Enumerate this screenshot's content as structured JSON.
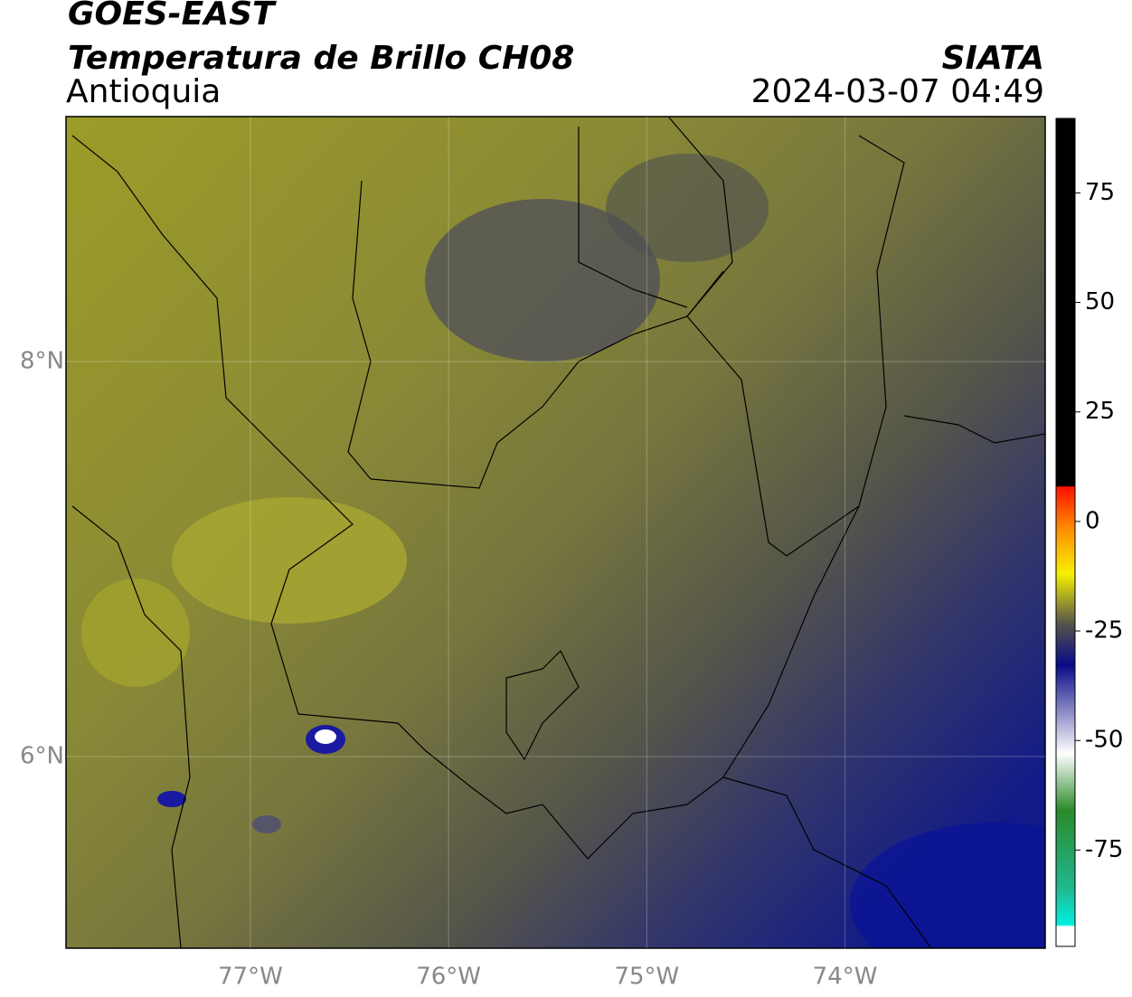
{
  "header": {
    "title": "GOES-EAST",
    "subtitle": "Temperatura de Brillo CH08",
    "region": "Antioquia",
    "source": "SIATA",
    "datetime": "2024-03-07 04:49"
  },
  "map": {
    "xlim": [
      -77.93,
      -72.99
    ],
    "ylim": [
      5.03,
      9.24
    ],
    "xticks": [
      {
        "value": -77,
        "label": "77°W"
      },
      {
        "value": -76,
        "label": "76°W"
      },
      {
        "value": -75,
        "label": "75°W"
      },
      {
        "value": -74,
        "label": "74°W"
      }
    ],
    "yticks": [
      {
        "value": 6,
        "label": "6°N"
      },
      {
        "value": 8,
        "label": "8°N"
      }
    ],
    "grid": true
  },
  "colorbar": {
    "lim": [
      -97,
      92
    ],
    "ticks": [
      -75,
      -50,
      -25,
      0,
      25,
      50,
      75
    ]
  }
}
